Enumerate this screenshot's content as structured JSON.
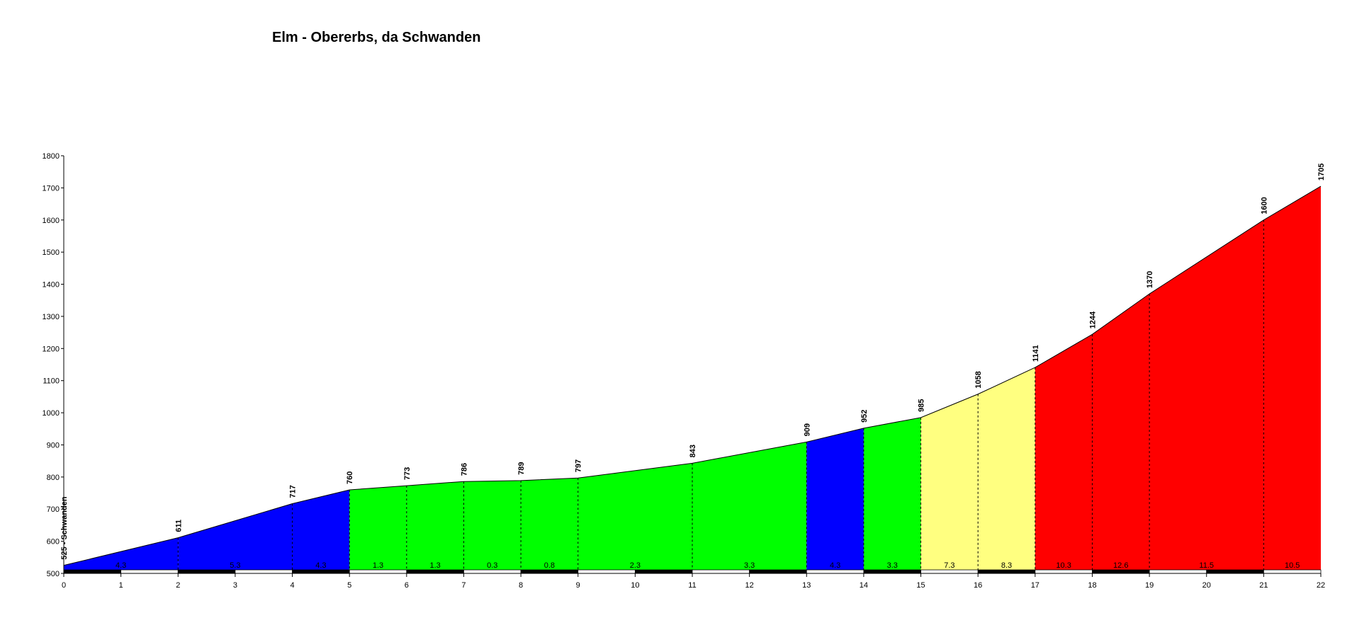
{
  "chart_data": {
    "type": "area",
    "title": "Elm - Obererbs, da Schwanden",
    "xlabel": "",
    "ylabel": "",
    "xlim": [
      0,
      22
    ],
    "ylim": [
      500,
      1800
    ],
    "x_ticks": [
      0,
      1,
      2,
      3,
      4,
      5,
      6,
      7,
      8,
      9,
      10,
      11,
      12,
      13,
      14,
      15,
      16,
      17,
      18,
      19,
      20,
      21,
      22
    ],
    "y_ticks": [
      500,
      600,
      700,
      800,
      900,
      1000,
      1100,
      1200,
      1300,
      1400,
      1500,
      1600,
      1700,
      1800
    ],
    "grid": false,
    "legend": "none",
    "profile": [
      {
        "x": 0,
        "y": 525,
        "label": "525 - Schwanden"
      },
      {
        "x": 2,
        "y": 611,
        "label": "611"
      },
      {
        "x": 4,
        "y": 717,
        "label": "717"
      },
      {
        "x": 5,
        "y": 760,
        "label": "760"
      },
      {
        "x": 6,
        "y": 773,
        "label": "773"
      },
      {
        "x": 7,
        "y": 786,
        "label": "786"
      },
      {
        "x": 8,
        "y": 789,
        "label": "789"
      },
      {
        "x": 9,
        "y": 797,
        "label": "797"
      },
      {
        "x": 11,
        "y": 843,
        "label": "843"
      },
      {
        "x": 13,
        "y": 909,
        "label": "909"
      },
      {
        "x": 14,
        "y": 952,
        "label": "952"
      },
      {
        "x": 15,
        "y": 985,
        "label": "985"
      },
      {
        "x": 16,
        "y": 1058,
        "label": "1058"
      },
      {
        "x": 17,
        "y": 1141,
        "label": "1141"
      },
      {
        "x": 18,
        "y": 1244,
        "label": "1244"
      },
      {
        "x": 19,
        "y": 1370,
        "label": "1370"
      },
      {
        "x": 21,
        "y": 1600,
        "label": "1600"
      },
      {
        "x": 22,
        "y": 1705,
        "label": "1705"
      }
    ],
    "segments": [
      {
        "x0": 0,
        "x1": 2,
        "gradient": "4.3",
        "color": "#0000ff"
      },
      {
        "x0": 2,
        "x1": 4,
        "gradient": "5.3",
        "color": "#0000ff"
      },
      {
        "x0": 4,
        "x1": 5,
        "gradient": "4.3",
        "color": "#0000ff"
      },
      {
        "x0": 5,
        "x1": 6,
        "gradient": "1.3",
        "color": "#00ff00"
      },
      {
        "x0": 6,
        "x1": 7,
        "gradient": "1.3",
        "color": "#00ff00"
      },
      {
        "x0": 7,
        "x1": 8,
        "gradient": "0.3",
        "color": "#00ff00"
      },
      {
        "x0": 8,
        "x1": 9,
        "gradient": "0.8",
        "color": "#00ff00"
      },
      {
        "x0": 9,
        "x1": 11,
        "gradient": "2.3",
        "color": "#00ff00"
      },
      {
        "x0": 11,
        "x1": 13,
        "gradient": "3.3",
        "color": "#00ff00"
      },
      {
        "x0": 13,
        "x1": 14,
        "gradient": "4.3",
        "color": "#0000ff"
      },
      {
        "x0": 14,
        "x1": 15,
        "gradient": "3.3",
        "color": "#00ff00"
      },
      {
        "x0": 15,
        "x1": 16,
        "gradient": "7.3",
        "color": "#ffff80"
      },
      {
        "x0": 16,
        "x1": 17,
        "gradient": "8.3",
        "color": "#ffff80"
      },
      {
        "x0": 17,
        "x1": 18,
        "gradient": "10.3",
        "color": "#ff0000"
      },
      {
        "x0": 18,
        "x1": 19,
        "gradient": "12.6",
        "color": "#ff0000"
      },
      {
        "x0": 19,
        "x1": 21,
        "gradient": "11.5",
        "color": "#ff0000"
      },
      {
        "x0": 21,
        "x1": 22,
        "gradient": "10.5",
        "color": "#ff0000"
      }
    ]
  }
}
